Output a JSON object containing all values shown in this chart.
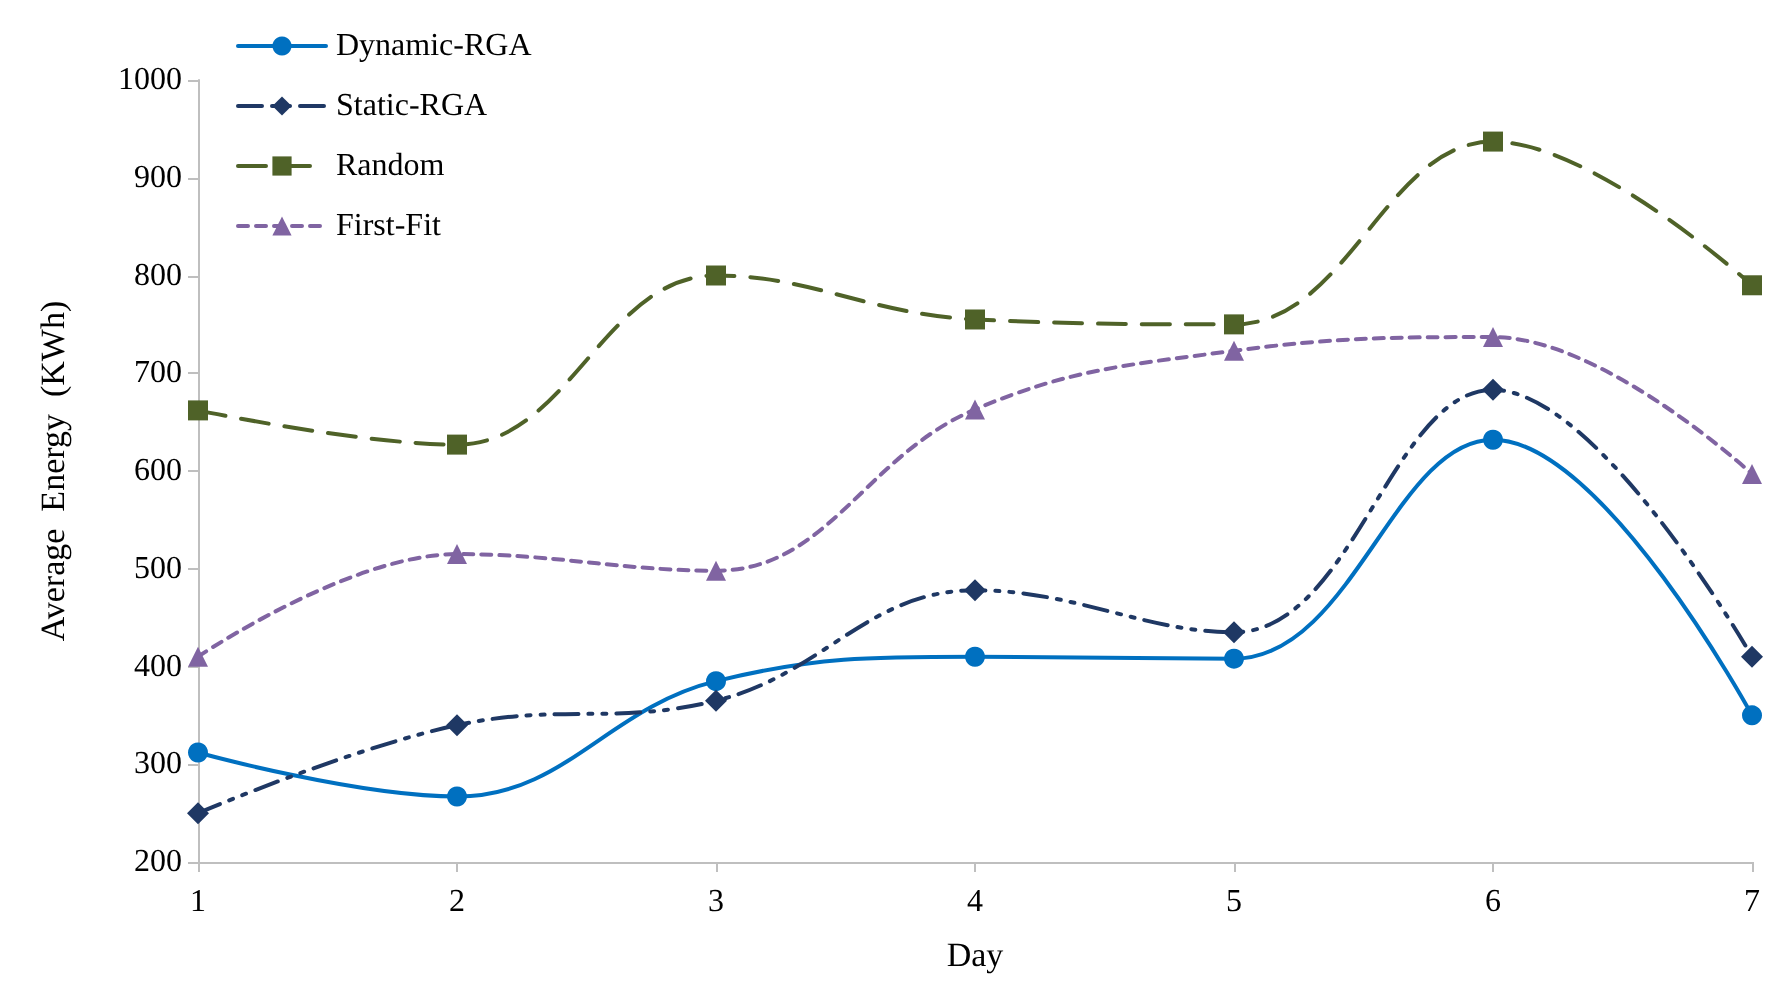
{
  "chart_data": {
    "type": "line",
    "xlabel": "Day",
    "ylabel": "Average  Energy  (KWh)",
    "categories": [
      "1",
      "2",
      "3",
      "4",
      "5",
      "6",
      "7"
    ],
    "ylim": [
      200,
      1000
    ],
    "yticks": [
      200,
      300,
      400,
      500,
      600,
      700,
      800,
      900,
      1000
    ],
    "grid": false,
    "legend": "top left",
    "series": [
      {
        "name": "Dynamic-RGA",
        "color": "#0070c0",
        "marker": "circle",
        "line_style": "solid",
        "values": [
          312,
          267,
          385,
          410,
          408,
          632,
          350
        ]
      },
      {
        "name": "Static-RGA",
        "color": "#1f3864",
        "marker": "diamond",
        "line_style": "dashdot",
        "values": [
          250,
          340,
          365,
          478,
          435,
          683,
          410
        ]
      },
      {
        "name": "Random",
        "color": "#4f6228",
        "marker": "square",
        "line_style": "dashed",
        "values": [
          662,
          627,
          800,
          755,
          750,
          937,
          790
        ]
      },
      {
        "name": "First-Fit",
        "color": "#8064a2",
        "marker": "triangle",
        "line_style": "dotted",
        "values": [
          410,
          515,
          498,
          663,
          723,
          737,
          597
        ]
      }
    ]
  }
}
